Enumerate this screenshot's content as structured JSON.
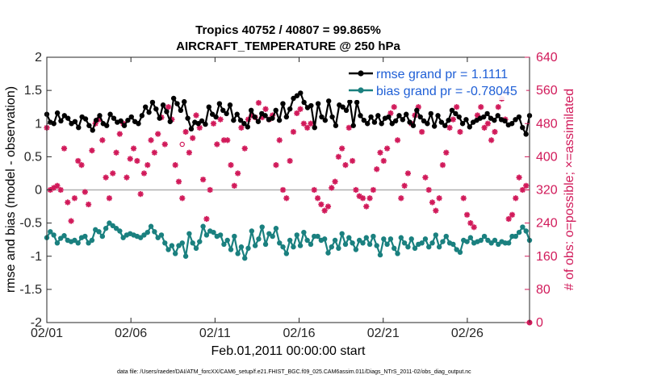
{
  "chart_data": {
    "type": "line",
    "title": "Tropics 40752 / 40807 = 99.865%",
    "subtitle": "AIRCRAFT_TEMPERATURE @ 250 hPa",
    "xlabel": "Feb.01,2011 00:00:00 start",
    "ylabel": "rmse and bias (model - observation)",
    "ylabel_right": "# of obs: o=possible; ×=assimilated",
    "footnote": "data file: /Users/raeder/DAI/ATM_forcXX/CAM6_setup/f.e21.FHIST_BGC.f09_025.CAM6assim.011/Diags_NTrS_2011-02/obs_diag_output.nc",
    "xlim": [
      0,
      28.7
    ],
    "ylim": [
      -2,
      2
    ],
    "ylim_right": [
      0,
      640
    ],
    "xticks": [
      {
        "label": "02/01",
        "value": 0
      },
      {
        "label": "02/06",
        "value": 5
      },
      {
        "label": "02/11",
        "value": 10
      },
      {
        "label": "02/16",
        "value": 15
      },
      {
        "label": "02/21",
        "value": 20
      },
      {
        "label": "02/26",
        "value": 25
      }
    ],
    "yticks": [
      {
        "label": "2",
        "value": 2
      },
      {
        "label": "1.5",
        "value": 1.5
      },
      {
        "label": "1",
        "value": 1
      },
      {
        "label": "0.5",
        "value": 0.5
      },
      {
        "label": "0",
        "value": 0
      },
      {
        "label": "-0.5",
        "value": -0.5
      },
      {
        "label": "-1",
        "value": -1
      },
      {
        "label": "-1.5",
        "value": -1.5
      },
      {
        "label": "-2",
        "value": -2
      }
    ],
    "yticks_right": [
      {
        "label": "640",
        "value": 640
      },
      {
        "label": "560",
        "value": 560
      },
      {
        "label": "480",
        "value": 480
      },
      {
        "label": "400",
        "value": 400
      },
      {
        "label": "320",
        "value": 320
      },
      {
        "label": "240",
        "value": 240
      },
      {
        "label": "160",
        "value": 160
      },
      {
        "label": "80",
        "value": 80
      },
      {
        "label": "0",
        "value": 0
      }
    ],
    "zero_line": 0,
    "series": [
      {
        "name": "rmse grand pr = 1.1111",
        "color": "#000000",
        "axis": "left",
        "marker": "circle",
        "values": [
          1.14,
          1.02,
          1.0,
          1.16,
          1.04,
          1.12,
          1.08,
          1.0,
          1.03,
          0.94,
          1.1,
          1.07,
          0.97,
          0.9,
          1.05,
          1.12,
          1.0,
          0.97,
          1.14,
          1.08,
          1.02,
          1.04,
          0.97,
          1.05,
          1.1,
          1.03,
          1.0,
          1.12,
          1.25,
          1.17,
          1.32,
          1.22,
          1.08,
          1.28,
          1.18,
          1.03,
          1.38,
          1.3,
          1.2,
          1.33,
          1.08,
          0.92,
          1.02,
          1.0,
          1.04,
          0.99,
          1.25,
          1.14,
          1.1,
          1.3,
          1.2,
          1.15,
          1.28,
          1.05,
          1.14,
          1.05,
          1.0,
          0.95,
          1.2,
          1.1,
          1.03,
          1.15,
          1.12,
          1.06,
          1.08,
          1.2,
          1.05,
          1.3,
          1.1,
          1.22,
          1.38,
          1.42,
          1.46,
          1.32,
          1.24,
          1.27,
          0.94,
          1.3,
          1.1,
          1.05,
          1.34,
          1.1,
          0.97,
          1.28,
          1.25,
          1.2,
          1.33,
          0.97,
          1.32,
          1.12,
          1.05,
          1.0,
          1.1,
          1.02,
          1.12,
          1.0,
          1.08,
          1.1,
          1.0,
          1.04,
          1.12,
          1.06,
          1.14,
          1.02,
          0.97,
          1.2,
          1.1,
          1.04,
          1.0,
          1.15,
          0.96,
          1.12,
          1.02,
          0.97,
          1.05,
          1.2,
          1.15,
          1.1,
          1.0,
          1.06,
          0.95,
          1.02,
          1.05,
          1.08,
          1.1,
          1.15,
          1.08,
          1.05,
          1.12,
          1.06,
          1.04,
          0.98,
          1.0,
          1.06,
          1.1,
          0.94,
          0.84,
          1.12
        ]
      },
      {
        "name": "bias grand pr = -0.78045",
        "color": "#1a807f",
        "axis": "left",
        "marker": "circle",
        "values": [
          -0.72,
          -0.63,
          -0.68,
          -0.8,
          -0.73,
          -0.69,
          -0.76,
          -0.78,
          -0.76,
          -0.8,
          -0.72,
          -0.7,
          -0.8,
          -0.76,
          -0.6,
          -0.63,
          -0.7,
          -0.58,
          -0.5,
          -0.54,
          -0.58,
          -0.62,
          -0.72,
          -0.68,
          -0.66,
          -0.68,
          -0.7,
          -0.72,
          -0.68,
          -0.64,
          -0.55,
          -0.63,
          -0.72,
          -0.68,
          -0.8,
          -0.9,
          -0.84,
          -0.96,
          -0.84,
          -0.8,
          -1.0,
          -0.66,
          -0.8,
          -0.88,
          -0.78,
          -0.55,
          -0.68,
          -0.62,
          -0.64,
          -0.7,
          -0.68,
          -0.82,
          -0.76,
          -0.9,
          -0.7,
          -0.96,
          -0.86,
          -1.03,
          -0.88,
          -0.62,
          -0.84,
          -0.74,
          -0.56,
          -0.82,
          -0.66,
          -0.7,
          -0.58,
          -0.8,
          -0.86,
          -0.96,
          -0.76,
          -0.86,
          -0.68,
          -0.84,
          -0.64,
          -0.76,
          -0.82,
          -0.7,
          -0.7,
          -0.76,
          -0.74,
          -0.95,
          -0.86,
          -0.76,
          -0.88,
          -0.66,
          -0.82,
          -0.72,
          -0.8,
          -0.9,
          -0.76,
          -0.8,
          -0.72,
          -0.82,
          -0.7,
          -0.84,
          -0.98,
          -0.74,
          -0.82,
          -0.74,
          -0.88,
          -0.96,
          -0.72,
          -0.8,
          -0.86,
          -0.74,
          -0.88,
          -0.82,
          -0.8,
          -0.74,
          -0.86,
          -0.8,
          -0.68,
          -0.86,
          -0.78,
          -0.7,
          -0.8,
          -0.82,
          -0.9,
          -0.94,
          -0.76,
          -0.78,
          -0.72,
          -0.8,
          -0.78,
          -0.76,
          -0.7,
          -0.76,
          -0.8,
          -0.76,
          -0.82,
          -0.78,
          -0.8,
          -0.8,
          -0.7,
          -0.7,
          -0.64,
          -0.56,
          -0.62,
          -0.76
        ]
      },
      {
        "name": "# of obs possible / assimilated",
        "color": "#d11a5a",
        "axis": "right",
        "marker": "asterisk",
        "values": [
          470,
          320,
          325,
          330,
          320,
          420,
          290,
          245,
          300,
          390,
          380,
          315,
          285,
          415,
          480,
          490,
          440,
          350,
          300,
          360,
          410,
          455,
          480,
          350,
          395,
          420,
          390,
          310,
          360,
          380,
          440,
          410,
          455,
          495,
          430,
          520,
          490,
          380,
          340,
          300,
          460,
          410,
          445,
          500,
          470,
          345,
          250,
          320,
          480,
          430,
          490,
          440,
          440,
          380,
          330,
          360,
          470,
          420,
          490,
          500,
          495,
          530,
          495,
          515,
          490,
          500,
          380,
          440,
          320,
          300,
          390,
          460,
          505,
          515,
          480,
          470,
          480,
          320,
          300,
          285,
          270,
          280,
          325,
          340,
          400,
          420,
          380,
          470,
          390,
          320,
          305,
          300,
          280,
          300,
          320,
          370,
          410,
          390,
          420,
          505,
          520,
          440,
          300,
          330,
          360,
          480,
          500,
          520,
          460,
          350,
          320,
          290,
          270,
          300,
          380,
          410,
          470,
          490,
          520,
          460,
          300,
          260,
          240,
          230,
          500,
          520,
          470,
          480,
          440,
          460,
          520,
          540,
          490,
          250,
          260,
          300,
          350,
          320,
          330,
          0
        ]
      }
    ],
    "possible_marker_points": [
      {
        "x": 8.05,
        "value": 430
      },
      {
        "x": 27.3,
        "value": 555
      }
    ]
  }
}
